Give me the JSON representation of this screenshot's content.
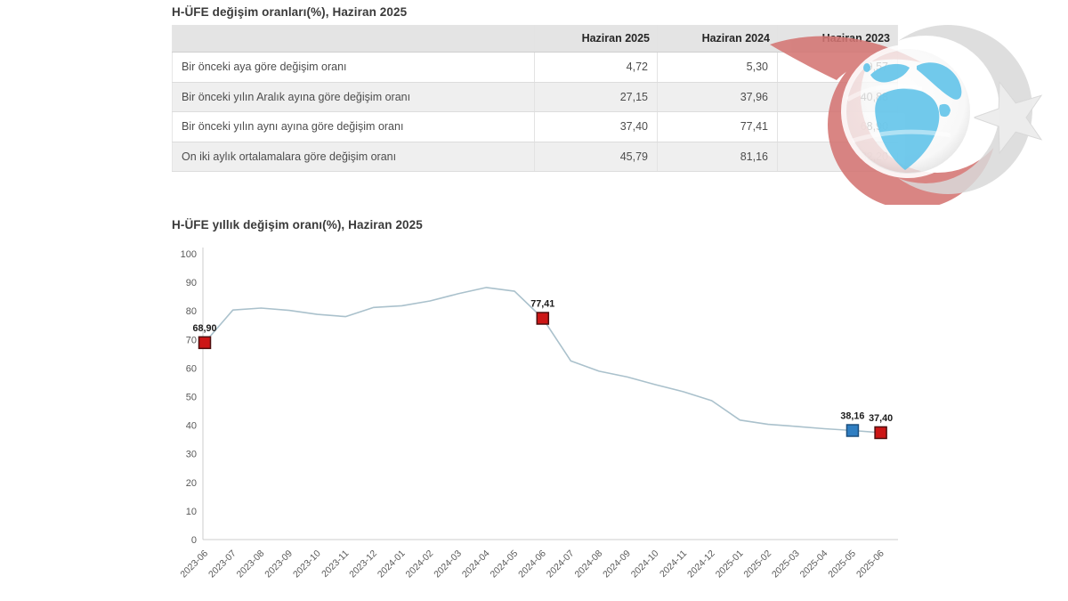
{
  "table_section": {
    "title": "H-ÜFE değişim oranları(%), Haziran 2025",
    "columns": [
      "",
      "Haziran 2025",
      "Haziran 2024",
      "Haziran 2023"
    ],
    "rows": [
      {
        "label": "Bir önceki aya göre değişim oranı",
        "values": [
          "4,72",
          "5,30",
          "9,57"
        ]
      },
      {
        "label": "Bir önceki yılın Aralık ayına göre değişim oranı",
        "values": [
          "27,15",
          "37,96",
          "40,88"
        ]
      },
      {
        "label": "Bir önceki yılın aynı ayına göre değişim oranı",
        "values": [
          "37,40",
          "77,41",
          "68,90"
        ]
      },
      {
        "label": "On iki aylık ortalamalara göre değişim oranı",
        "values": [
          "45,79",
          "81,16",
          "82,20"
        ]
      }
    ]
  },
  "chart_data": {
    "type": "line",
    "title": "H-ÜFE yıllık değişim oranı(%), Haziran 2025",
    "x": [
      "2023-06",
      "2023-07",
      "2023-08",
      "2023-09",
      "2023-10",
      "2023-11",
      "2023-12",
      "2024-01",
      "2024-02",
      "2024-03",
      "2024-04",
      "2024-05",
      "2024-06",
      "2024-07",
      "2024-08",
      "2024-09",
      "2024-10",
      "2024-11",
      "2024-12",
      "2025-01",
      "2025-02",
      "2025-03",
      "2025-04",
      "2025-05",
      "2025-06"
    ],
    "series": [
      {
        "name": "H-ÜFE yıllık değişim oranı (%)",
        "values": [
          68.9,
          80.3,
          81.0,
          80.2,
          78.8,
          78.0,
          81.2,
          81.8,
          83.5,
          86.0,
          88.2,
          86.9,
          77.41,
          62.5,
          58.9,
          56.9,
          54.2,
          51.7,
          48.6,
          41.8,
          40.3,
          39.6,
          38.8,
          38.16,
          37.4
        ]
      }
    ],
    "ylim": [
      0,
      100
    ],
    "ytick_step": 10,
    "grid": false,
    "legend": "none",
    "xlabel": "",
    "ylabel": "",
    "line_color": "#aac1cc",
    "axis_color": "#cccccc",
    "markers": [
      {
        "x": "2023-06",
        "value": 68.9,
        "label": "68,90",
        "fill": "#cc1616",
        "stroke": "#4d0f0f"
      },
      {
        "x": "2024-06",
        "value": 77.41,
        "label": "77,41",
        "fill": "#cc1616",
        "stroke": "#4d0f0f"
      },
      {
        "x": "2025-05",
        "value": 38.16,
        "label": "38,16",
        "fill": "#2f7ec2",
        "stroke": "#1c4f7e"
      },
      {
        "x": "2025-06",
        "value": 37.4,
        "label": "37,40",
        "fill": "#cc1616",
        "stroke": "#4d0f0f"
      }
    ]
  },
  "watermark": {
    "name": "globe-crescent-star-logo",
    "crescent_red": "#d47573",
    "crescent_gray": "#d9d9d9",
    "star_color": "#ededed",
    "globe_land": "#66c5ea",
    "globe_face": "#ffffff"
  }
}
